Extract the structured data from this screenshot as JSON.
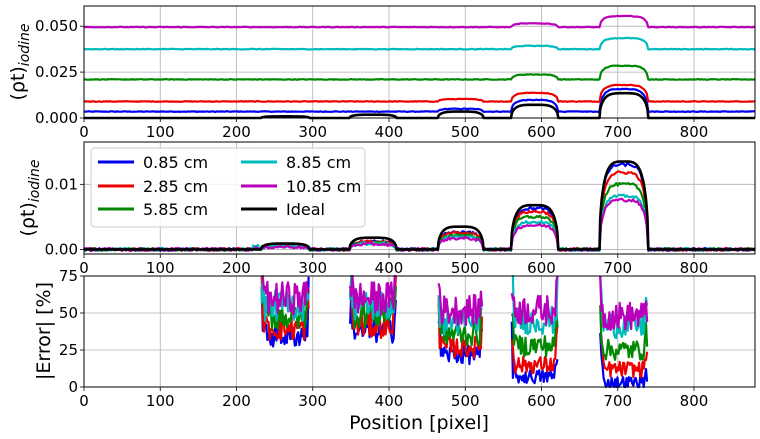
{
  "chart_data": [
    {
      "type": "line",
      "panel": "top",
      "ylabel_main": "(ρt)",
      "ylabel_sub": "iodine",
      "xlim": [
        0,
        880
      ],
      "ylim": [
        0,
        0.061
      ],
      "xticks": [
        "0",
        "100",
        "200",
        "300",
        "400",
        "500",
        "600",
        "700",
        "800"
      ],
      "xtick_values": [
        0,
        100,
        200,
        300,
        400,
        500,
        600,
        700,
        800
      ],
      "yticks": [
        "0.000",
        "0.025",
        "0.050"
      ],
      "ytick_values": [
        0,
        0.025,
        0.05
      ],
      "grid": true,
      "segments": [
        {
          "x0": 232,
          "x1": 296,
          "ideal": 0.0009
        },
        {
          "x0": 348,
          "x1": 410,
          "ideal": 0.0018
        },
        {
          "x0": 464,
          "x1": 524,
          "ideal": 0.0035
        },
        {
          "x0": 560,
          "x1": 622,
          "ideal": 0.0072
        },
        {
          "x0": 676,
          "x1": 740,
          "ideal": 0.0135
        }
      ],
      "series": [
        {
          "name": "0.85 cm",
          "color": "#0000ee",
          "baseline": 0.0035,
          "insert_values": [
            0.0035,
            0.0035,
            0.005,
            0.0098,
            0.0158
          ]
        },
        {
          "name": "2.85 cm",
          "color": "#ee0000",
          "baseline": 0.009,
          "insert_values": [
            0.009,
            0.009,
            0.0103,
            0.0137,
            0.018
          ]
        },
        {
          "name": "5.85 cm",
          "color": "#008800",
          "baseline": 0.021,
          "insert_values": [
            0.021,
            0.021,
            0.021,
            0.0237,
            0.0285
          ]
        },
        {
          "name": "8.85 cm",
          "color": "#00bbbb",
          "baseline": 0.0375,
          "insert_values": [
            0.0375,
            0.0375,
            0.0375,
            0.0393,
            0.0435
          ]
        },
        {
          "name": "10.85 cm",
          "color": "#bb00bb",
          "baseline": 0.0495,
          "insert_values": [
            0.0495,
            0.0495,
            0.0495,
            0.0515,
            0.0555
          ]
        },
        {
          "name": "Ideal",
          "color": "#000000",
          "ideal": true
        }
      ]
    },
    {
      "type": "line",
      "panel": "middle",
      "ylabel_main": "(ρt)",
      "ylabel_sub": "iodine",
      "xlim": [
        0,
        880
      ],
      "ylim": [
        -0.0007,
        0.0165
      ],
      "xticks": [
        "0",
        "100",
        "200",
        "300",
        "400",
        "500",
        "600",
        "700",
        "800"
      ],
      "xtick_values": [
        0,
        100,
        200,
        300,
        400,
        500,
        600,
        700,
        800
      ],
      "yticks": [
        "0.00",
        "0.01"
      ],
      "ytick_values": [
        0,
        0.01
      ],
      "grid": true,
      "legend": {
        "position": "top-left",
        "columns": 2
      },
      "segments": [
        {
          "x0": 232,
          "x1": 296,
          "ideal": 0.0009
        },
        {
          "x0": 348,
          "x1": 410,
          "ideal": 0.0018
        },
        {
          "x0": 464,
          "x1": 524,
          "ideal": 0.0035
        },
        {
          "x0": 560,
          "x1": 622,
          "ideal": 0.0068
        },
        {
          "x0": 676,
          "x1": 740,
          "ideal": 0.0135
        }
      ],
      "series": [
        {
          "name": "0.85 cm",
          "color": "#0000ee",
          "insert_values": [
            0.0007,
            0.0012,
            0.0026,
            0.0063,
            0.013
          ]
        },
        {
          "name": "2.85 cm",
          "color": "#ee0000",
          "insert_values": [
            0.0007,
            0.0012,
            0.0025,
            0.0058,
            0.0118
          ]
        },
        {
          "name": "5.85 cm",
          "color": "#008800",
          "insert_values": [
            0.0006,
            0.001,
            0.0022,
            0.005,
            0.01
          ]
        },
        {
          "name": "8.85 cm",
          "color": "#00bbbb",
          "insert_values": [
            0.0005,
            0.0009,
            0.0019,
            0.0042,
            0.0082
          ]
        },
        {
          "name": "10.85 cm",
          "color": "#bb00bb",
          "insert_values": [
            0.0004,
            0.0008,
            0.0017,
            0.0037,
            0.0076
          ]
        },
        {
          "name": "Ideal",
          "color": "#000000",
          "ideal": true
        }
      ]
    },
    {
      "type": "line",
      "panel": "bottom",
      "ylabel": "|Error| [%]",
      "xlabel": "Position [pixel]",
      "xlim": [
        0,
        880
      ],
      "ylim": [
        0,
        75
      ],
      "xticks": [
        "0",
        "100",
        "200",
        "300",
        "400",
        "500",
        "600",
        "700",
        "800"
      ],
      "xtick_values": [
        0,
        100,
        200,
        300,
        400,
        500,
        600,
        700,
        800
      ],
      "yticks": [
        "0",
        "25",
        "50",
        "75"
      ],
      "ytick_values": [
        0,
        25,
        50,
        75
      ],
      "grid": true,
      "segments": [
        {
          "x0": 232,
          "x1": 296
        },
        {
          "x0": 348,
          "x1": 410
        },
        {
          "x0": 464,
          "x1": 524
        },
        {
          "x0": 560,
          "x1": 622
        },
        {
          "x0": 676,
          "x1": 740
        }
      ],
      "series": [
        {
          "name": "0.85 cm",
          "color": "#0000ee",
          "error_values": [
            35,
            38,
            22,
            7,
            3
          ]
        },
        {
          "name": "2.85 cm",
          "color": "#ee0000",
          "error_values": [
            40,
            42,
            27,
            15,
            12
          ]
        },
        {
          "name": "5.85 cm",
          "color": "#008800",
          "error_values": [
            48,
            50,
            36,
            28,
            25
          ]
        },
        {
          "name": "8.85 cm",
          "color": "#00bbbb",
          "error_values": [
            55,
            55,
            44,
            45,
            42
          ]
        },
        {
          "name": "10.85 cm",
          "color": "#bb00bb",
          "error_values": [
            60,
            60,
            52,
            52,
            48
          ]
        }
      ]
    }
  ]
}
